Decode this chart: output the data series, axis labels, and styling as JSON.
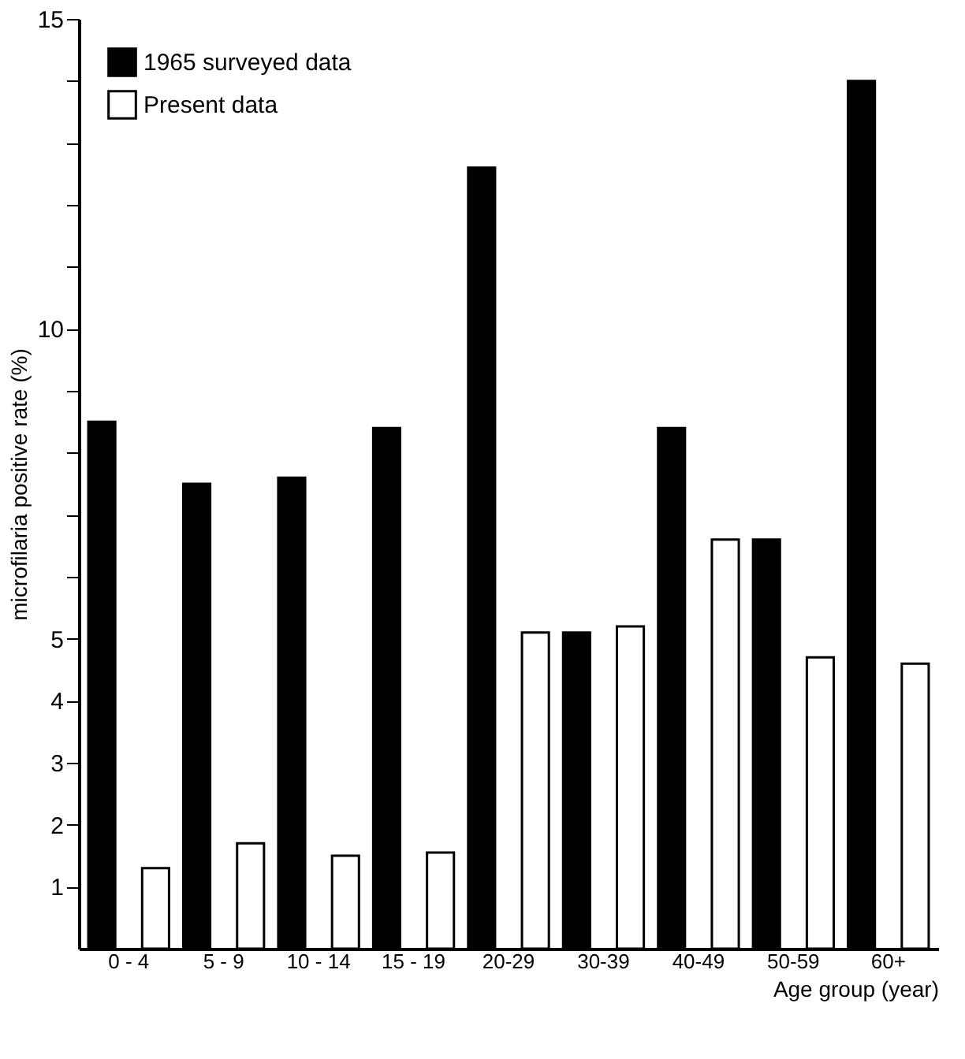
{
  "chart_data": {
    "type": "bar",
    "xlabel": "Age group (year)",
    "ylabel": "microfilaria positive rate (%)",
    "categories": [
      "0 - 4",
      "5 - 9",
      "10 - 14",
      "15 - 19",
      "20-29",
      "30-39",
      "40-49",
      "50-59",
      "60+"
    ],
    "series": [
      {
        "name": "1965 surveyed data",
        "color": "#000000",
        "values": [
          8.5,
          7.5,
          7.6,
          8.4,
          12.6,
          5.1,
          8.4,
          6.6,
          14.0
        ]
      },
      {
        "name": "Present data",
        "color": "#ffffff",
        "values": [
          1.3,
          1.7,
          1.5,
          1.55,
          5.1,
          5.2,
          6.6,
          4.7,
          4.6
        ]
      }
    ],
    "ylim": [
      0,
      15
    ],
    "yticks": [
      1,
      2,
      3,
      4,
      5,
      {
        "value": 6,
        "label": null
      },
      {
        "value": 7,
        "label": null
      },
      {
        "value": 8,
        "label": null
      },
      {
        "value": 9,
        "label": null
      },
      10,
      {
        "value": 11,
        "label": null
      },
      {
        "value": 12,
        "label": null
      },
      {
        "value": 13,
        "label": null
      },
      {
        "value": 14,
        "label": null
      },
      15
    ],
    "grid": false,
    "legend": "top left"
  }
}
